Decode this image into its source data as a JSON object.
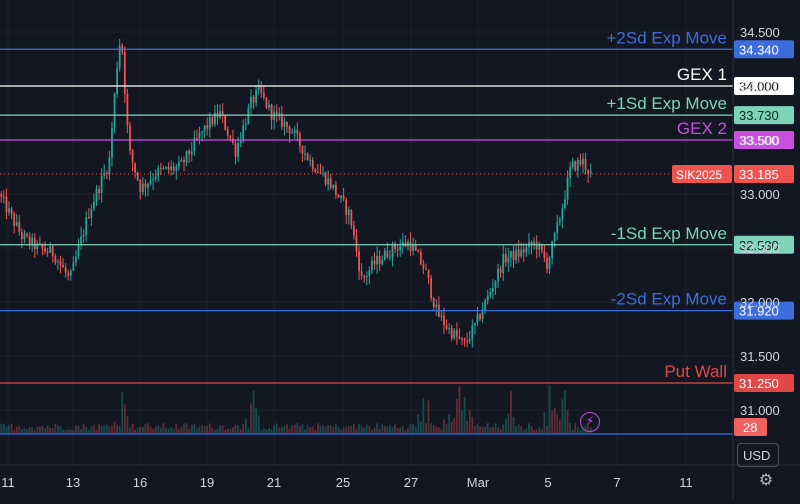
{
  "chart_data": {
    "type": "candlestick",
    "symbol_tag": "SIK2025",
    "last_price": "33.185",
    "volume_tag": "28",
    "y_ticks": [
      "34.500",
      "34.000",
      "33.500",
      "33.000",
      "32.500",
      "32.000",
      "31.500",
      "31.000"
    ],
    "ylim": [
      30.75,
      34.72
    ],
    "x_ticks": [
      "11",
      "13",
      "16",
      "19",
      "21",
      "25",
      "27",
      "Mar",
      "5",
      "7",
      "11"
    ],
    "grid": true,
    "colors": {
      "up": "#26a69a",
      "down": "#ef5350",
      "background": "#131722"
    },
    "levels": [
      {
        "label": "+2Sd Exp Move",
        "value": 34.34,
        "tag": "34.340",
        "color": "#3d6ddb",
        "tag_text_color": "#ffffff"
      },
      {
        "label": "GEX 1",
        "value": 34.0,
        "tag": "34.000",
        "color": "#ffffff",
        "tag_text_color": "#000000"
      },
      {
        "label": "+1Sd Exp Move",
        "value": 33.73,
        "tag": "33.730",
        "color": "#7ed3b8",
        "tag_text_color": "#0d2a22"
      },
      {
        "label": "GEX 2",
        "value": 33.5,
        "tag": "33.500",
        "color": "#c94fe0",
        "tag_text_color": "#ffffff"
      },
      {
        "label": "-1Sd Exp Move",
        "value": 32.53,
        "tag": "32.530",
        "color": "#7ed3b8",
        "tag_text_color": "#0d2a22"
      },
      {
        "label": "-2Sd Exp Move",
        "value": 31.92,
        "tag": "31.920",
        "color": "#3d6ddb",
        "tag_text_color": "#ffffff"
      },
      {
        "label": "Put Wall",
        "value": 31.25,
        "tag": "31.250",
        "color": "#e04848",
        "tag_text_color": "#ffffff"
      }
    ],
    "price_path": [
      [
        0,
        33.0
      ],
      [
        0.03,
        32.6
      ],
      [
        0.05,
        32.5
      ],
      [
        0.07,
        32.45
      ],
      [
        0.09,
        32.2
      ],
      [
        0.115,
        32.85
      ],
      [
        0.14,
        33.3
      ],
      [
        0.15,
        34.2
      ],
      [
        0.155,
        34.5
      ],
      [
        0.165,
        33.4
      ],
      [
        0.18,
        33.05
      ],
      [
        0.2,
        33.2
      ],
      [
        0.23,
        33.25
      ],
      [
        0.26,
        33.6
      ],
      [
        0.28,
        33.75
      ],
      [
        0.3,
        33.4
      ],
      [
        0.32,
        33.85
      ],
      [
        0.33,
        33.95
      ],
      [
        0.345,
        33.75
      ],
      [
        0.37,
        33.6
      ],
      [
        0.395,
        33.3
      ],
      [
        0.42,
        33.1
      ],
      [
        0.445,
        32.8
      ],
      [
        0.46,
        32.2
      ],
      [
        0.475,
        32.35
      ],
      [
        0.5,
        32.5
      ],
      [
        0.52,
        32.55
      ],
      [
        0.54,
        32.3
      ],
      [
        0.555,
        31.9
      ],
      [
        0.57,
        31.75
      ],
      [
        0.59,
        31.6
      ],
      [
        0.605,
        31.8
      ],
      [
        0.62,
        32.05
      ],
      [
        0.64,
        32.4
      ],
      [
        0.66,
        32.45
      ],
      [
        0.68,
        32.55
      ],
      [
        0.695,
        32.35
      ],
      [
        0.71,
        32.75
      ],
      [
        0.725,
        33.25
      ],
      [
        0.74,
        33.3
      ],
      [
        0.75,
        33.185
      ]
    ],
    "volume_profile": {
      "peaks": [
        0.155,
        0.32,
        0.54,
        0.575,
        0.59,
        0.65,
        0.7,
        0.715
      ],
      "base": 0.04
    }
  },
  "ui": {
    "currency": "USD",
    "settings_icon": "gear-icon",
    "flash_icon": "lightning-icon"
  }
}
